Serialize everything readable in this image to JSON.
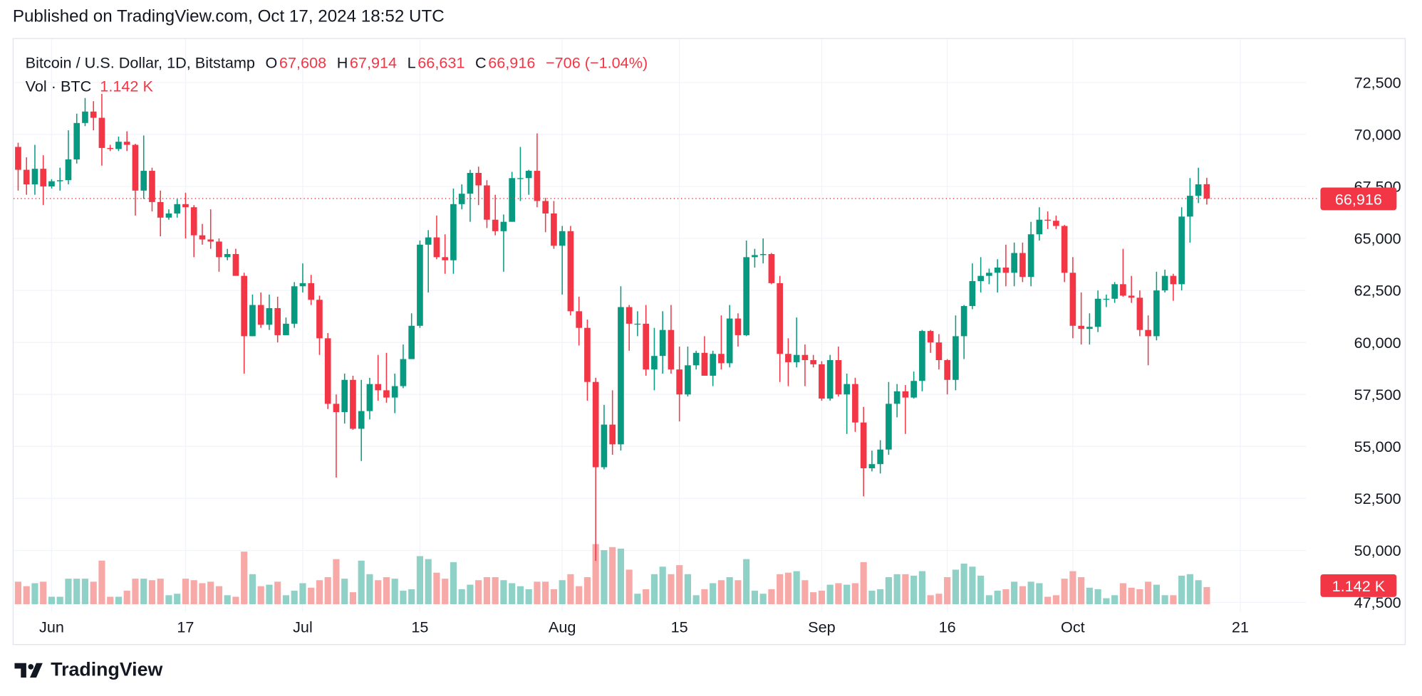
{
  "published": "Published on TradingView.com, Oct 17, 2024 18:52 UTC",
  "legend": {
    "symbol": "Bitcoin / U.S. Dollar, 1D, Bitstamp",
    "o_label": "O",
    "o": "67,608",
    "h_label": "H",
    "h": "67,914",
    "l_label": "L",
    "l": "66,631",
    "c_label": "C",
    "c": "66,916",
    "change": "−706 (−1.04%)",
    "vol_label": "Vol · BTC",
    "vol": "1.142 K"
  },
  "last_price_label": "66,916",
  "last_volume_label": "1.142 K",
  "brand": "TradingView",
  "colors": {
    "up": "#089981",
    "down": "#f23645",
    "up_volume": "#8fd1c6",
    "down_volume": "#f7a9a7"
  },
  "chart_data": {
    "type": "candlestick",
    "start_date": "2024-05-28",
    "interval": "1D",
    "ylim": [
      47500,
      72500
    ],
    "y_ticks": [
      "47,500",
      "50,000",
      "52,500",
      "55,000",
      "57,500",
      "60,000",
      "62,500",
      "65,000",
      "67,500",
      "70,000",
      "72,500"
    ],
    "x_ticks": [
      {
        "label": "Jun",
        "date": "2024-06-01"
      },
      {
        "label": "17",
        "date": "2024-06-17"
      },
      {
        "label": "Jul",
        "date": "2024-07-01"
      },
      {
        "label": "15",
        "date": "2024-07-15"
      },
      {
        "label": "Aug",
        "date": "2024-08-01"
      },
      {
        "label": "15",
        "date": "2024-08-15"
      },
      {
        "label": "Sep",
        "date": "2024-09-01"
      },
      {
        "label": "16",
        "date": "2024-09-16"
      },
      {
        "label": "Oct",
        "date": "2024-10-01"
      },
      {
        "label": "21",
        "date": "2024-10-21"
      }
    ],
    "grid": true,
    "ohlc": [
      [
        69400,
        69600,
        67300,
        68300
      ],
      [
        68300,
        68900,
        67100,
        67600
      ],
      [
        67600,
        69500,
        67100,
        68350
      ],
      [
        68350,
        69000,
        66600,
        67500
      ],
      [
        67500,
        67850,
        67400,
        67750
      ],
      [
        67750,
        68400,
        67300,
        67800
      ],
      [
        67800,
        70200,
        67600,
        68800
      ],
      [
        68800,
        71000,
        68600,
        70550
      ],
      [
        70550,
        71750,
        70400,
        71100
      ],
      [
        71100,
        71600,
        70200,
        70800
      ],
      [
        70800,
        71950,
        68500,
        69350
      ],
      [
        69350,
        69500,
        69200,
        69300
      ],
      [
        69300,
        69900,
        69200,
        69650
      ],
      [
        69650,
        70150,
        69200,
        69500
      ],
      [
        69500,
        69550,
        66100,
        67300
      ],
      [
        67300,
        69950,
        66900,
        68250
      ],
      [
        68250,
        68400,
        66300,
        66750
      ],
      [
        66750,
        67300,
        65100,
        66000
      ],
      [
        66000,
        66400,
        65900,
        66200
      ],
      [
        66200,
        66900,
        66000,
        66650
      ],
      [
        66650,
        67200,
        65000,
        66500
      ],
      [
        66500,
        66600,
        64100,
        65150
      ],
      [
        65150,
        65700,
        64700,
        64950
      ],
      [
        64950,
        66400,
        64500,
        64850
      ],
      [
        64850,
        65000,
        63400,
        64100
      ],
      [
        64100,
        64500,
        63950,
        64250
      ],
      [
        64250,
        64500,
        63300,
        63200
      ],
      [
        63200,
        63350,
        58500,
        60300
      ],
      [
        60300,
        62300,
        60300,
        61800
      ],
      [
        61800,
        62400,
        60700,
        60850
      ],
      [
        60850,
        62300,
        60600,
        61650
      ],
      [
        61650,
        62200,
        60000,
        60350
      ],
      [
        60350,
        61200,
        60350,
        60900
      ],
      [
        60900,
        62900,
        60700,
        62700
      ],
      [
        62700,
        63800,
        62400,
        62850
      ],
      [
        62850,
        63250,
        61800,
        62050
      ],
      [
        62050,
        62250,
        59400,
        60200
      ],
      [
        60200,
        60450,
        56800,
        57050
      ],
      [
        57050,
        57500,
        53500,
        56650
      ],
      [
        56650,
        58500,
        56100,
        58200
      ],
      [
        58200,
        58400,
        55800,
        55850
      ],
      [
        55850,
        58200,
        54300,
        56700
      ],
      [
        56700,
        58300,
        56300,
        58000
      ],
      [
        58000,
        59400,
        57200,
        57700
      ],
      [
        57700,
        59500,
        57100,
        57350
      ],
      [
        57350,
        58500,
        56600,
        57900
      ],
      [
        57900,
        59900,
        57800,
        59200
      ],
      [
        59200,
        61400,
        59200,
        60800
      ],
      [
        60800,
        64900,
        60700,
        64700
      ],
      [
        64700,
        65400,
        62400,
        65050
      ],
      [
        65050,
        66100,
        64000,
        64100
      ],
      [
        64100,
        65200,
        63300,
        63950
      ],
      [
        63950,
        67400,
        63300,
        66650
      ],
      [
        66650,
        67600,
        66400,
        67150
      ],
      [
        67150,
        68300,
        65800,
        68150
      ],
      [
        68150,
        68450,
        66600,
        67550
      ],
      [
        67550,
        67800,
        65500,
        65900
      ],
      [
        65900,
        67100,
        65150,
        65350
      ],
      [
        65350,
        66150,
        63400,
        65800
      ],
      [
        65800,
        68200,
        65800,
        67900
      ],
      [
        67900,
        69400,
        66800,
        67900
      ],
      [
        67900,
        68300,
        67100,
        68250
      ],
      [
        68250,
        70050,
        66500,
        66800
      ],
      [
        66800,
        66950,
        65300,
        66200
      ],
      [
        66200,
        66800,
        64500,
        64650
      ],
      [
        64650,
        65600,
        62300,
        65350
      ],
      [
        65350,
        65600,
        61300,
        61500
      ],
      [
        61500,
        62200,
        59850,
        60700
      ],
      [
        60700,
        61100,
        57200,
        58100
      ],
      [
        58100,
        58300,
        49500,
        54000
      ],
      [
        54000,
        57000,
        53900,
        56050
      ],
      [
        56050,
        57700,
        54600,
        55100
      ],
      [
        55100,
        62700,
        54800,
        61700
      ],
      [
        61700,
        61800,
        59600,
        60900
      ],
      [
        60900,
        61500,
        60300,
        60900
      ],
      [
        60900,
        61800,
        58400,
        58700
      ],
      [
        58700,
        60700,
        57700,
        59350
      ],
      [
        59350,
        61500,
        58500,
        60600
      ],
      [
        60600,
        61800,
        58500,
        58700
      ],
      [
        58700,
        59800,
        56200,
        57500
      ],
      [
        57500,
        59800,
        57400,
        58900
      ],
      [
        58900,
        59600,
        58700,
        59500
      ],
      [
        59500,
        60300,
        58400,
        58400
      ],
      [
        58400,
        59600,
        57900,
        59450
      ],
      [
        59450,
        61300,
        58700,
        59000
      ],
      [
        59000,
        61800,
        58800,
        61150
      ],
      [
        61150,
        61400,
        59800,
        60350
      ],
      [
        60350,
        64900,
        60300,
        64100
      ],
      [
        64100,
        64500,
        63600,
        64200
      ],
      [
        64200,
        65000,
        63800,
        64250
      ],
      [
        64250,
        64300,
        62800,
        62850
      ],
      [
        62850,
        63200,
        58100,
        59450
      ],
      [
        59450,
        60200,
        57900,
        59050
      ],
      [
        59050,
        61200,
        58800,
        59400
      ],
      [
        59400,
        59900,
        57900,
        59150
      ],
      [
        59150,
        59400,
        58800,
        58950
      ],
      [
        58950,
        59100,
        57200,
        57300
      ],
      [
        57300,
        59400,
        57200,
        59150
      ],
      [
        59150,
        59800,
        57400,
        57500
      ],
      [
        57500,
        58500,
        55600,
        58000
      ],
      [
        58000,
        58300,
        55700,
        56150
      ],
      [
        56150,
        56900,
        52600,
        53950
      ],
      [
        53950,
        54800,
        53800,
        54150
      ],
      [
        54150,
        55300,
        53700,
        54850
      ],
      [
        54850,
        58100,
        54600,
        57050
      ],
      [
        57050,
        58000,
        56400,
        57650
      ],
      [
        57650,
        57950,
        55600,
        57350
      ],
      [
        57350,
        58600,
        57300,
        58150
      ],
      [
        58150,
        60600,
        57650,
        60550
      ],
      [
        60550,
        60600,
        59500,
        60000
      ],
      [
        60000,
        60400,
        58700,
        59150
      ],
      [
        59150,
        59200,
        57500,
        58200
      ],
      [
        58200,
        61300,
        57700,
        60300
      ],
      [
        60300,
        61800,
        59200,
        61750
      ],
      [
        61750,
        63800,
        61600,
        62950
      ],
      [
        62950,
        64100,
        62400,
        63200
      ],
      [
        63200,
        63550,
        62800,
        63350
      ],
      [
        63350,
        64000,
        62400,
        63600
      ],
      [
        63600,
        64700,
        62700,
        63350
      ],
      [
        63350,
        64800,
        62700,
        64300
      ],
      [
        64300,
        64800,
        62900,
        63150
      ],
      [
        63150,
        65800,
        62700,
        65200
      ],
      [
        65200,
        66500,
        64900,
        65900
      ],
      [
        65900,
        66300,
        65450,
        65850
      ],
      [
        65850,
        66100,
        65450,
        65600
      ],
      [
        65600,
        65650,
        62900,
        63350
      ],
      [
        63350,
        64100,
        60200,
        60800
      ],
      [
        60800,
        62400,
        59900,
        60650
      ],
      [
        60650,
        61400,
        59900,
        60750
      ],
      [
        60750,
        62500,
        60500,
        62100
      ],
      [
        62100,
        62300,
        61700,
        62100
      ],
      [
        62100,
        62900,
        61900,
        62800
      ],
      [
        62800,
        64500,
        62200,
        62250
      ],
      [
        62250,
        63200,
        61900,
        62150
      ],
      [
        62150,
        62500,
        60300,
        60600
      ],
      [
        60600,
        61300,
        58900,
        60300
      ],
      [
        60300,
        63400,
        60100,
        62500
      ],
      [
        62500,
        63500,
        62400,
        63200
      ],
      [
        63200,
        63300,
        62000,
        62800
      ],
      [
        62800,
        66500,
        62500,
        66050
      ],
      [
        66050,
        67900,
        64800,
        67050
      ],
      [
        67050,
        68400,
        66700,
        67600
      ],
      [
        67608,
        67914,
        66631,
        66916
      ]
    ],
    "volume_k": [
      1.5,
      1.2,
      1.4,
      1.5,
      0.5,
      0.5,
      1.7,
      1.7,
      1.7,
      1.5,
      2.9,
      0.5,
      0.5,
      0.9,
      1.7,
      1.7,
      1.6,
      1.7,
      0.6,
      0.7,
      1.7,
      1.6,
      1.4,
      1.5,
      1.2,
      0.6,
      0.5,
      3.5,
      2.0,
      1.2,
      1.3,
      1.5,
      0.6,
      0.9,
      1.4,
      1.1,
      1.6,
      1.8,
      3.0,
      1.7,
      0.8,
      2.9,
      2.0,
      1.6,
      1.8,
      1.7,
      0.9,
      1.0,
      3.2,
      3.0,
      2.1,
      1.7,
      2.8,
      1.0,
      1.3,
      1.6,
      1.8,
      1.8,
      1.6,
      1.4,
      1.2,
      1.0,
      1.5,
      1.5,
      1.0,
      1.6,
      2.0,
      1.2,
      1.8,
      4.0,
      3.6,
      3.8,
      3.7,
      2.3,
      0.7,
      1.0,
      2.0,
      2.5,
      2.0,
      2.6,
      2.0,
      0.6,
      1.0,
      1.4,
      1.6,
      1.8,
      1.6,
      3.0,
      0.9,
      0.7,
      1.0,
      2.0,
      2.1,
      2.2,
      1.6,
      0.8,
      0.9,
      1.3,
      1.4,
      1.3,
      1.4,
      2.8,
      0.9,
      1.0,
      1.8,
      2.0,
      2.0,
      1.9,
      2.2,
      0.6,
      0.7,
      1.8,
      2.3,
      2.7,
      2.5,
      1.9,
      0.6,
      0.9,
      1.0,
      1.5,
      1.2,
      1.5,
      1.4,
      0.5,
      0.6,
      1.7,
      2.2,
      1.8,
      1.1,
      1.0,
      0.4,
      0.6,
      1.4,
      1.1,
      1.0,
      1.5,
      1.3,
      0.6,
      0.6,
      1.9,
      2.0,
      1.6,
      1.142
    ],
    "last_price": 66916
  }
}
